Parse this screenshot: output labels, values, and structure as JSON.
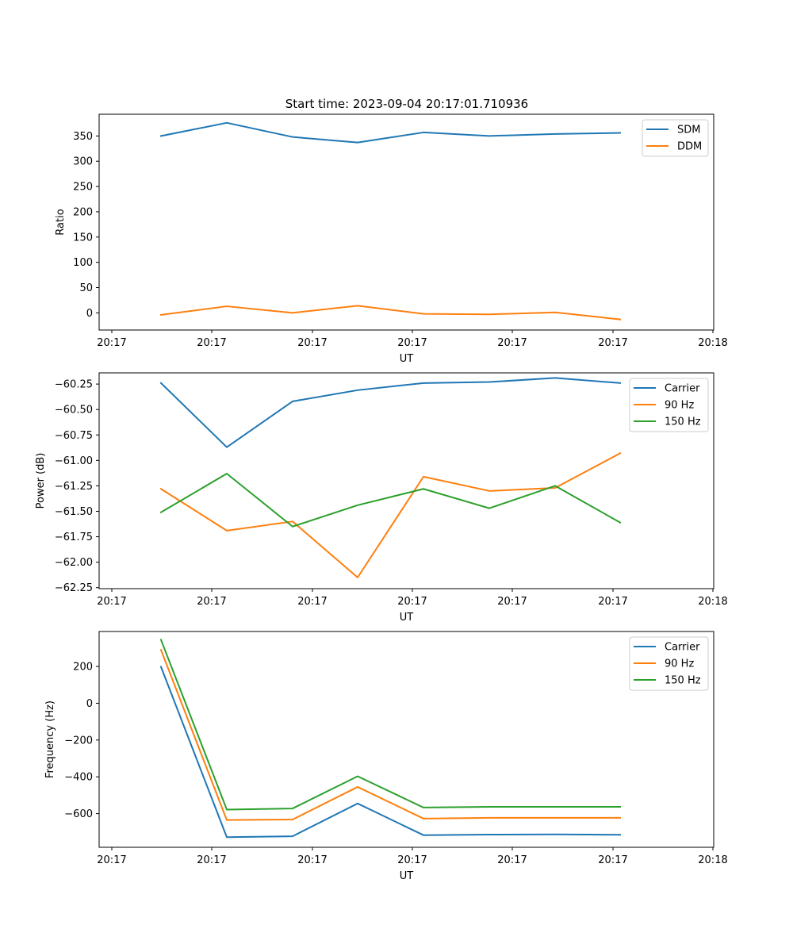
{
  "figure_title": "Start time: 2023-09-04 20:17:01.710936",
  "colors": {
    "blue": "#1f77b4",
    "orange": "#ff7f0e",
    "green": "#2ca02c"
  },
  "chart_data": [
    {
      "type": "line",
      "xlabel": "UT",
      "ylabel": "Ratio",
      "xtick_labels": [
        "20:17",
        "20:17",
        "20:17",
        "20:17",
        "20:17",
        "20:17",
        "20:18"
      ],
      "ylim": [
        -34,
        393
      ],
      "yticks": [
        0,
        50,
        100,
        150,
        200,
        250,
        300,
        350
      ],
      "series": [
        {
          "name": "SDM",
          "color": "#1f77b4",
          "values": [
            350,
            376,
            348,
            337,
            357,
            350,
            354,
            356
          ]
        },
        {
          "name": "DDM",
          "color": "#ff7f0e",
          "values": [
            -4,
            13,
            0,
            14,
            -2,
            -3,
            1,
            -13
          ]
        }
      ]
    },
    {
      "type": "line",
      "xlabel": "UT",
      "ylabel": "Power (dB)",
      "xtick_labels": [
        "20:17",
        "20:17",
        "20:17",
        "20:17",
        "20:17",
        "20:17",
        "20:18"
      ],
      "ylim": [
        -62.26,
        -60.14
      ],
      "yticks": [
        -62.25,
        -62.0,
        -61.75,
        -61.5,
        -61.25,
        -61.0,
        -60.75,
        -60.5,
        -60.25
      ],
      "ytick_labels": [
        "−62.25",
        "−62.00",
        "−61.75",
        "−61.50",
        "−61.25",
        "−61.00",
        "−60.75",
        "−60.50",
        "−60.25"
      ],
      "series": [
        {
          "name": "Carrier",
          "color": "#1f77b4",
          "values": [
            -60.24,
            -60.87,
            -60.42,
            -60.31,
            -60.24,
            -60.23,
            -60.19,
            -60.24
          ]
        },
        {
          "name": "90 Hz",
          "color": "#ff7f0e",
          "values": [
            -61.28,
            -61.69,
            -61.6,
            -62.15,
            -61.16,
            -61.3,
            -61.27,
            -60.93
          ]
        },
        {
          "name": "150 Hz",
          "color": "#2ca02c",
          "values": [
            -61.51,
            -61.13,
            -61.65,
            -61.44,
            -61.28,
            -61.47,
            -61.25,
            -61.61
          ]
        }
      ]
    },
    {
      "type": "line",
      "xlabel": "UT",
      "ylabel": "Frequency (Hz)",
      "xtick_labels": [
        "20:17",
        "20:17",
        "20:17",
        "20:17",
        "20:17",
        "20:17",
        "20:18"
      ],
      "ylim": [
        -783,
        390
      ],
      "yticks": [
        -600,
        -400,
        -200,
        0,
        200
      ],
      "ytick_labels": [
        "−600",
        "−400",
        "−200",
        "0",
        "200"
      ],
      "series": [
        {
          "name": "Carrier",
          "color": "#1f77b4",
          "values": [
            198,
            -728,
            -723,
            -545,
            -717,
            -714,
            -713,
            -715
          ]
        },
        {
          "name": "90 Hz",
          "color": "#ff7f0e",
          "values": [
            290,
            -635,
            -632,
            -455,
            -627,
            -623,
            -623,
            -623
          ]
        },
        {
          "name": "150 Hz",
          "color": "#2ca02c",
          "values": [
            345,
            -578,
            -572,
            -397,
            -567,
            -563,
            -563,
            -563
          ]
        }
      ]
    }
  ]
}
